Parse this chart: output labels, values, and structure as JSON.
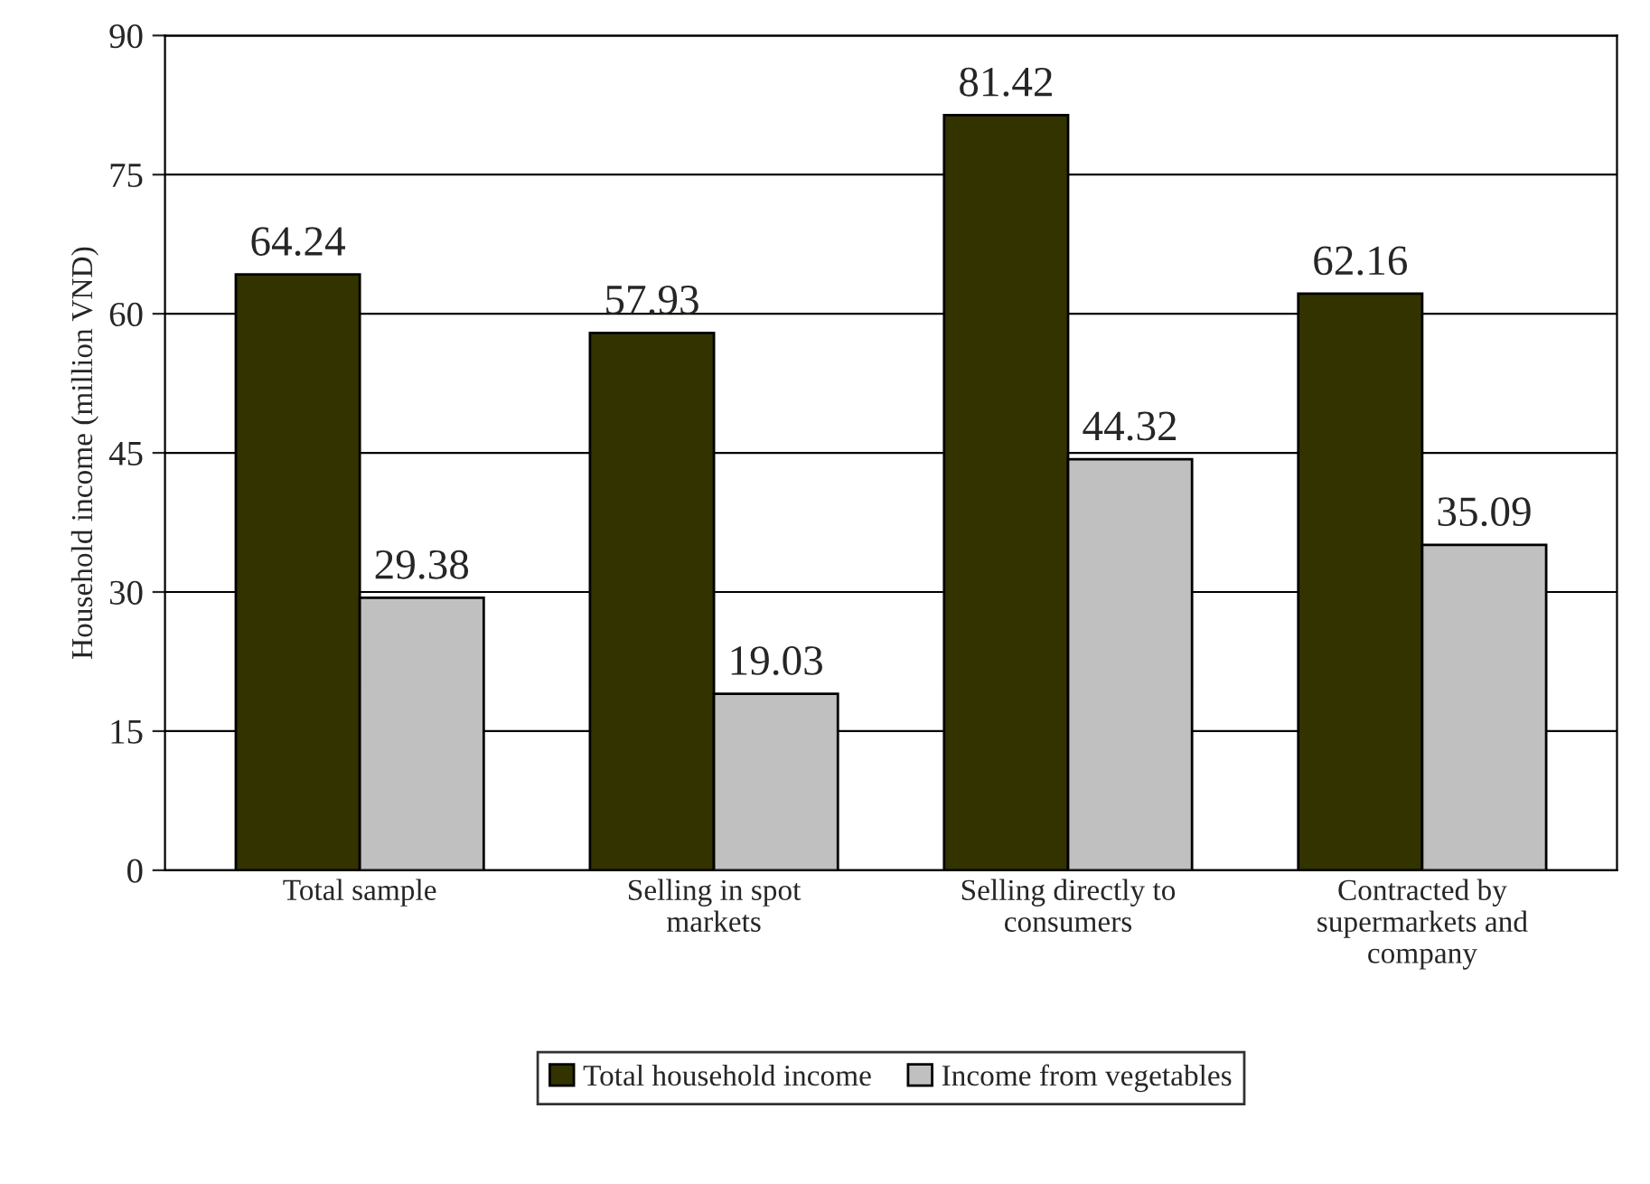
{
  "chart_data": {
    "type": "bar",
    "ylabel": "Household income (million VND)",
    "categories": [
      "Total sample",
      "Selling in spot\nmarkets",
      "Selling directly to\nconsumers",
      "Contracted by\nsupermarkets and\ncompany"
    ],
    "series": [
      {
        "name": "Total household income",
        "color": "#333300",
        "values": [
          64.24,
          57.93,
          81.42,
          62.16
        ]
      },
      {
        "name": "Income from vegetables",
        "color": "#c0c0c0",
        "values": [
          29.38,
          19.03,
          44.32,
          35.09
        ]
      }
    ],
    "ylim": [
      0,
      90
    ],
    "yticks": [
      0,
      15,
      30,
      45,
      60,
      75,
      90
    ],
    "grid": "y",
    "legend": "bottom",
    "data_labels": true
  }
}
